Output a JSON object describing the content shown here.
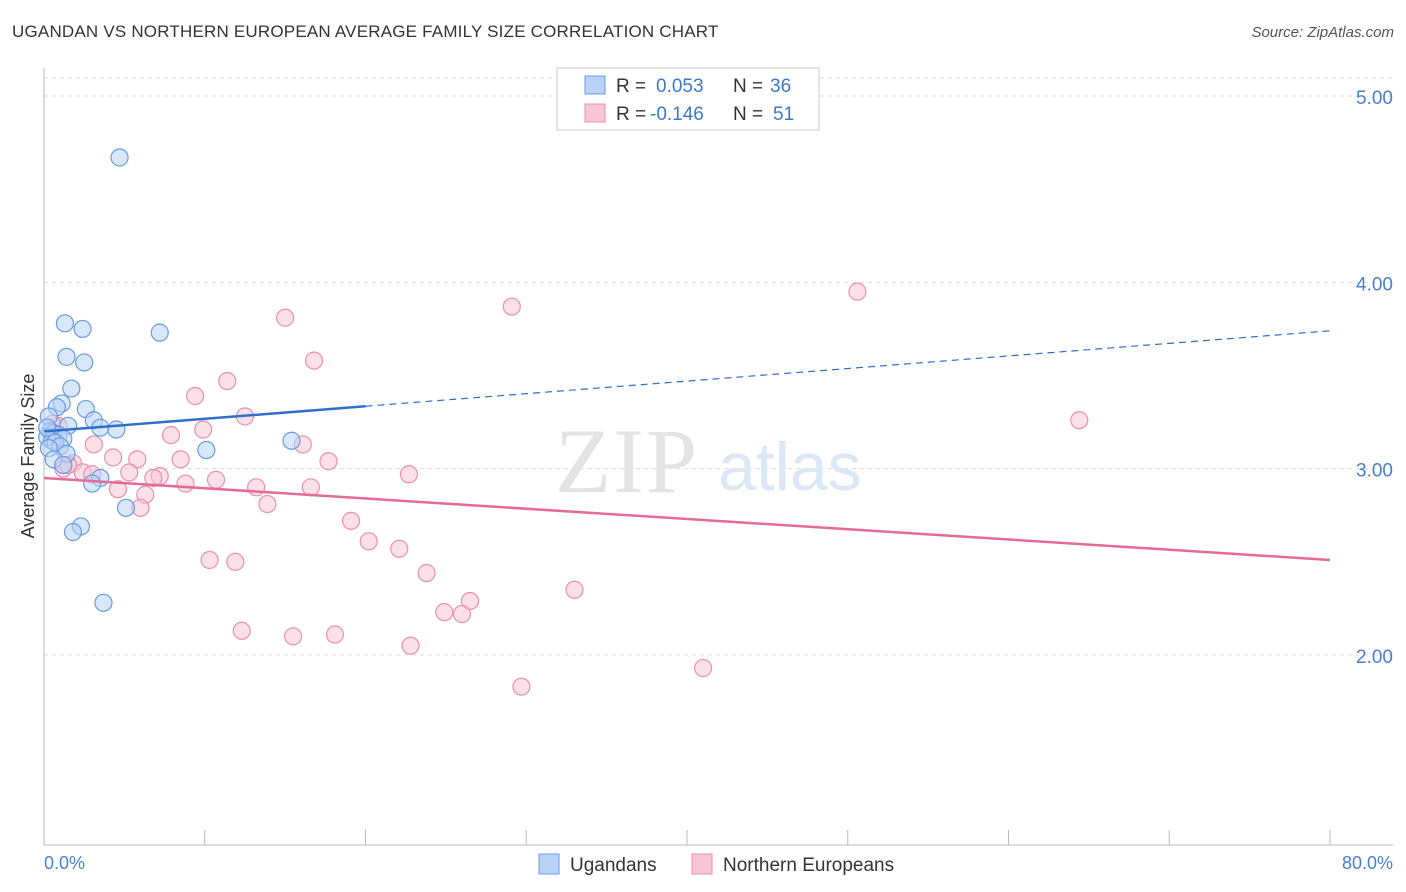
{
  "title": "UGANDAN VS NORTHERN EUROPEAN AVERAGE FAMILY SIZE CORRELATION CHART",
  "source": "Source: ZipAtlas.com",
  "watermark": {
    "zip": "ZIP",
    "atlas": "atlas"
  },
  "legend": {
    "rows": [
      {
        "r_label": "R =",
        "r_value": "0.053",
        "n_label": "N =",
        "n_value": "36"
      },
      {
        "r_label": "R =",
        "r_value": "-0.146",
        "n_label": "N =",
        "n_value": "51"
      }
    ]
  },
  "bottom_legend": [
    "Ugandans",
    "Northern Europeans"
  ],
  "colors": {
    "blue_fill": "#b8d3f5",
    "blue_stroke": "#6a9be0",
    "blue_line": "#2e6fca",
    "pink_fill": "#f8c6d6",
    "pink_stroke": "#e890ae",
    "pink_line": "#e46a98",
    "tick_text": "#4a7fcf",
    "grid": "#dddddd"
  },
  "chart_data": {
    "type": "scatter",
    "title": "UGANDAN VS NORTHERN EUROPEAN AVERAGE FAMILY SIZE CORRELATION CHART",
    "xlabel": "",
    "ylabel": "Average Family Size",
    "xlim": [
      0,
      80
    ],
    "ylim": [
      1.0,
      5.2
    ],
    "x_tick_labels": [
      "0.0%",
      "80.0%"
    ],
    "y_ticks": [
      2.0,
      3.0,
      4.0,
      5.0
    ],
    "y_tick_labels": [
      "2.00",
      "3.00",
      "4.00",
      "5.00"
    ],
    "grid": true,
    "series": [
      {
        "name": "Ugandans",
        "r": 0.053,
        "n": 36,
        "trend": {
          "x": [
            0,
            80
          ],
          "y": [
            3.2,
            3.74
          ],
          "solid_until_x": 20
        },
        "points": [
          [
            4.7,
            4.67
          ],
          [
            1.3,
            3.78
          ],
          [
            2.4,
            3.75
          ],
          [
            7.2,
            3.73
          ],
          [
            1.4,
            3.6
          ],
          [
            2.5,
            3.57
          ],
          [
            1.7,
            3.43
          ],
          [
            1.1,
            3.35
          ],
          [
            0.8,
            3.33
          ],
          [
            2.6,
            3.32
          ],
          [
            0.3,
            3.28
          ],
          [
            3.1,
            3.26
          ],
          [
            1.5,
            3.23
          ],
          [
            3.5,
            3.22
          ],
          [
            4.5,
            3.21
          ],
          [
            0.4,
            3.2
          ],
          [
            0.6,
            3.19
          ],
          [
            0.9,
            3.18
          ],
          [
            0.2,
            3.17
          ],
          [
            1.2,
            3.16
          ],
          [
            0.5,
            3.15
          ],
          [
            15.4,
            3.15
          ],
          [
            0.7,
            3.14
          ],
          [
            1.0,
            3.12
          ],
          [
            0.3,
            3.11
          ],
          [
            10.1,
            3.1
          ],
          [
            1.4,
            3.08
          ],
          [
            0.6,
            3.05
          ],
          [
            1.2,
            3.02
          ],
          [
            3.5,
            2.95
          ],
          [
            3.0,
            2.92
          ],
          [
            5.1,
            2.79
          ],
          [
            2.3,
            2.69
          ],
          [
            1.8,
            2.66
          ],
          [
            3.7,
            2.28
          ],
          [
            0.2,
            3.22
          ]
        ]
      },
      {
        "name": "Northern Europeans",
        "r": -0.146,
        "n": 51,
        "trend": {
          "x": [
            0,
            80
          ],
          "y": [
            2.95,
            2.51
          ]
        },
        "points": [
          [
            50.6,
            3.95
          ],
          [
            29.1,
            3.87
          ],
          [
            15.0,
            3.81
          ],
          [
            16.8,
            3.58
          ],
          [
            11.4,
            3.47
          ],
          [
            9.4,
            3.39
          ],
          [
            12.5,
            3.28
          ],
          [
            64.4,
            3.26
          ],
          [
            0.9,
            3.23
          ],
          [
            9.9,
            3.21
          ],
          [
            7.9,
            3.18
          ],
          [
            3.1,
            3.13
          ],
          [
            16.1,
            3.13
          ],
          [
            4.3,
            3.06
          ],
          [
            5.8,
            3.05
          ],
          [
            8.5,
            3.05
          ],
          [
            17.7,
            3.04
          ],
          [
            1.8,
            3.03
          ],
          [
            1.2,
            3.0
          ],
          [
            5.3,
            2.98
          ],
          [
            2.4,
            2.98
          ],
          [
            22.7,
            2.97
          ],
          [
            7.2,
            2.96
          ],
          [
            6.8,
            2.95
          ],
          [
            10.7,
            2.94
          ],
          [
            8.8,
            2.92
          ],
          [
            13.2,
            2.9
          ],
          [
            16.6,
            2.9
          ],
          [
            4.6,
            2.89
          ],
          [
            6.3,
            2.86
          ],
          [
            13.9,
            2.81
          ],
          [
            6.0,
            2.79
          ],
          [
            19.1,
            2.72
          ],
          [
            20.2,
            2.61
          ],
          [
            22.1,
            2.57
          ],
          [
            10.3,
            2.51
          ],
          [
            11.9,
            2.5
          ],
          [
            23.8,
            2.44
          ],
          [
            26.5,
            2.29
          ],
          [
            33.0,
            2.35
          ],
          [
            24.9,
            2.23
          ],
          [
            26.0,
            2.22
          ],
          [
            12.3,
            2.13
          ],
          [
            15.5,
            2.1
          ],
          [
            18.1,
            2.11
          ],
          [
            22.8,
            2.05
          ],
          [
            41.0,
            1.93
          ],
          [
            29.7,
            1.83
          ],
          [
            0.5,
            3.24
          ],
          [
            1.5,
            3.02
          ],
          [
            3.0,
            2.97
          ]
        ]
      }
    ]
  }
}
